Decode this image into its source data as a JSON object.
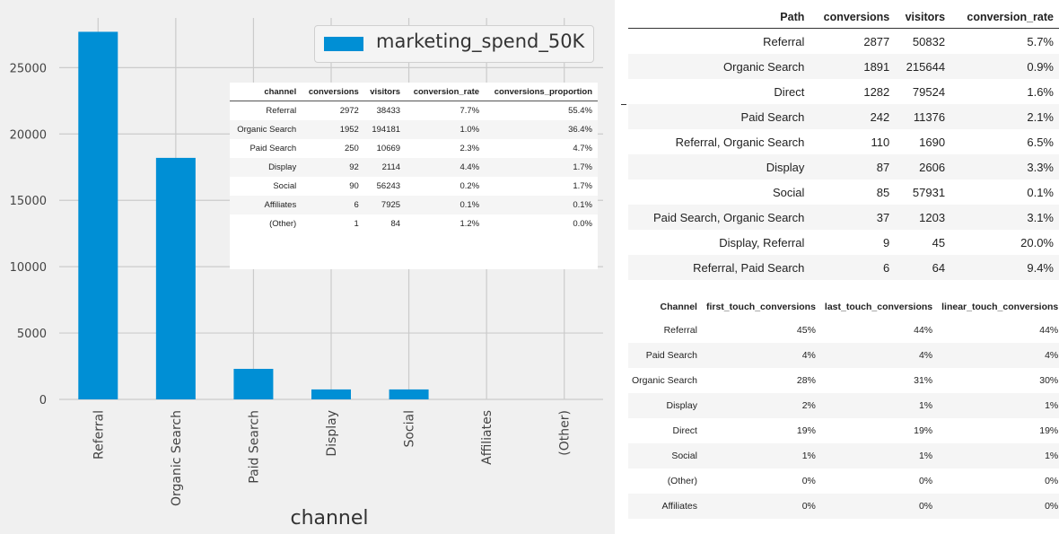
{
  "chart_data": {
    "type": "bar",
    "xlabel": "channel",
    "ylabel": "",
    "ylim": [
      0,
      28000
    ],
    "yticks": [
      0,
      5000,
      10000,
      15000,
      20000,
      25000
    ],
    "grid": true,
    "legend": "top-right",
    "categories": [
      "Referral",
      "Organic Search",
      "Paid Search",
      "Display",
      "Social",
      "Affiliates",
      "(Other)"
    ],
    "series": [
      {
        "name": "marketing_spend_50K",
        "values": [
          27700,
          18200,
          2300,
          750,
          750,
          0,
          0
        ]
      }
    ],
    "color": "#008fd5"
  },
  "inset_table": {
    "columns": [
      "channel",
      "conversions",
      "visitors",
      "conversion_rate",
      "conversions_proportion"
    ],
    "rows": [
      [
        "Referral",
        "2972",
        "38433",
        "7.7%",
        "55.4%"
      ],
      [
        "Organic Search",
        "1952",
        "194181",
        "1.0%",
        "36.4%"
      ],
      [
        "Paid Search",
        "250",
        "10669",
        "2.3%",
        "4.7%"
      ],
      [
        "Display",
        "92",
        "2114",
        "4.4%",
        "1.7%"
      ],
      [
        "Social",
        "90",
        "56243",
        "0.2%",
        "1.7%"
      ],
      [
        "Affiliates",
        "6",
        "7925",
        "0.1%",
        "0.1%"
      ],
      [
        "(Other)",
        "1",
        "84",
        "1.2%",
        "0.0%"
      ]
    ]
  },
  "path_table": {
    "columns": [
      "Path",
      "conversions",
      "visitors",
      "conversion_rate"
    ],
    "rows": [
      [
        "Referral",
        "2877",
        "50832",
        "5.7%"
      ],
      [
        "Organic Search",
        "1891",
        "215644",
        "0.9%"
      ],
      [
        "Direct",
        "1282",
        "79524",
        "1.6%"
      ],
      [
        "Paid Search",
        "242",
        "11376",
        "2.1%"
      ],
      [
        "Referral, Organic Search",
        "110",
        "1690",
        "6.5%"
      ],
      [
        "Display",
        "87",
        "2606",
        "3.3%"
      ],
      [
        "Social",
        "85",
        "57931",
        "0.1%"
      ],
      [
        "Paid Search, Organic Search",
        "37",
        "1203",
        "3.1%"
      ],
      [
        "Display, Referral",
        "9",
        "45",
        "20.0%"
      ],
      [
        "Referral, Paid Search",
        "6",
        "64",
        "9.4%"
      ]
    ]
  },
  "touch_table": {
    "columns": [
      "Channel",
      "first_touch_conversions",
      "last_touch_conversions",
      "linear_touch_conversions"
    ],
    "rows": [
      [
        "Referral",
        "45%",
        "44%",
        "44%"
      ],
      [
        "Paid Search",
        "4%",
        "4%",
        "4%"
      ],
      [
        "Organic Search",
        "28%",
        "31%",
        "30%"
      ],
      [
        "Display",
        "2%",
        "1%",
        "1%"
      ],
      [
        "Direct",
        "19%",
        "19%",
        "19%"
      ],
      [
        "Social",
        "1%",
        "1%",
        "1%"
      ],
      [
        "(Other)",
        "0%",
        "0%",
        "0%"
      ],
      [
        "Affiliates",
        "0%",
        "0%",
        "0%"
      ]
    ]
  }
}
